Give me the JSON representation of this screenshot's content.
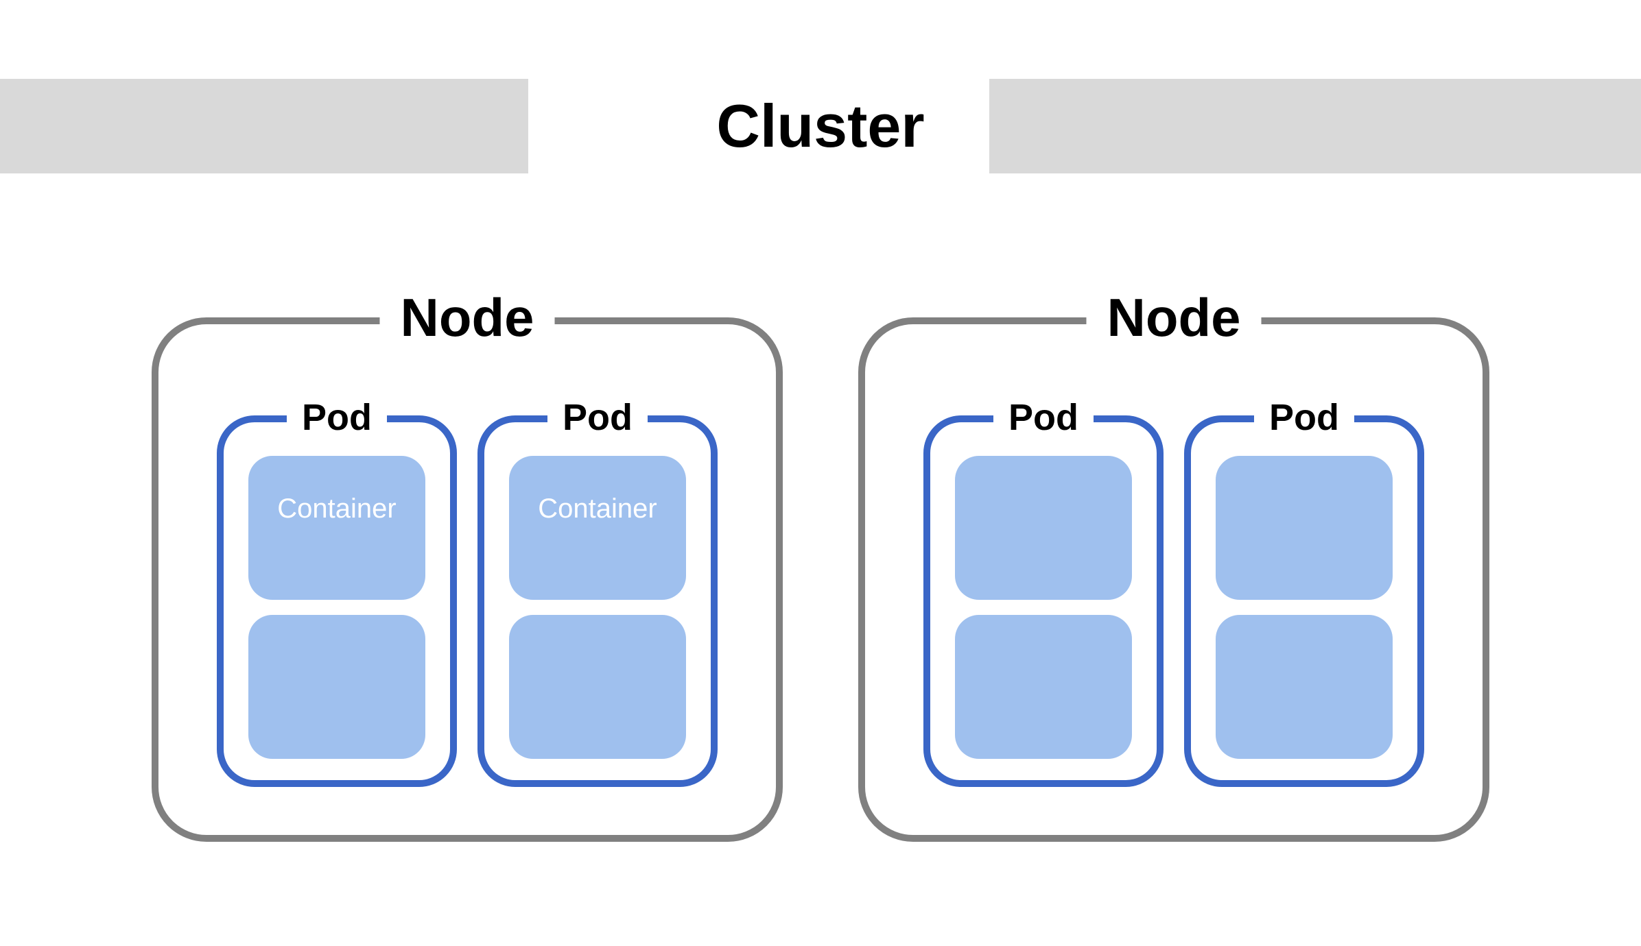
{
  "diagram": {
    "type": "infographic",
    "title": "Cluster",
    "title_fontsize": 88,
    "title_fontweight": 700,
    "title_color": "#000000",
    "header_bar_color": "#d9d9d9",
    "background_color": "#ffffff",
    "nodes": [
      {
        "label": "Node",
        "label_fontsize": 78,
        "label_fontweight": 700,
        "border_color": "#808080",
        "border_width": 10,
        "border_radius": 80,
        "pods": [
          {
            "label": "Pod",
            "label_fontsize": 54,
            "label_fontweight": 700,
            "border_color": "#3a66c7",
            "border_width": 10,
            "border_radius": 55,
            "containers": [
              {
                "label": "Container",
                "label_fontsize": 40,
                "label_color": "#ffffff",
                "fill_color": "#9fc0ee",
                "border_radius": 35
              },
              {
                "label": "",
                "fill_color": "#9fc0ee",
                "border_radius": 35
              }
            ]
          },
          {
            "label": "Pod",
            "label_fontsize": 54,
            "label_fontweight": 700,
            "border_color": "#3a66c7",
            "border_width": 10,
            "border_radius": 55,
            "containers": [
              {
                "label": "Container",
                "label_fontsize": 40,
                "label_color": "#ffffff",
                "fill_color": "#9fc0ee",
                "border_radius": 35
              },
              {
                "label": "",
                "fill_color": "#9fc0ee",
                "border_radius": 35
              }
            ]
          }
        ]
      },
      {
        "label": "Node",
        "label_fontsize": 78,
        "label_fontweight": 700,
        "border_color": "#808080",
        "border_width": 10,
        "border_radius": 80,
        "pods": [
          {
            "label": "Pod",
            "label_fontsize": 54,
            "label_fontweight": 700,
            "border_color": "#3a66c7",
            "border_width": 10,
            "border_radius": 55,
            "containers": [
              {
                "label": "",
                "fill_color": "#9fc0ee",
                "border_radius": 35
              },
              {
                "label": "",
                "fill_color": "#9fc0ee",
                "border_radius": 35
              }
            ]
          },
          {
            "label": "Pod",
            "label_fontsize": 54,
            "label_fontweight": 700,
            "border_color": "#3a66c7",
            "border_width": 10,
            "border_radius": 55,
            "containers": [
              {
                "label": "",
                "fill_color": "#9fc0ee",
                "border_radius": 35
              },
              {
                "label": "",
                "fill_color": "#9fc0ee",
                "border_radius": 35
              }
            ]
          }
        ]
      }
    ]
  }
}
